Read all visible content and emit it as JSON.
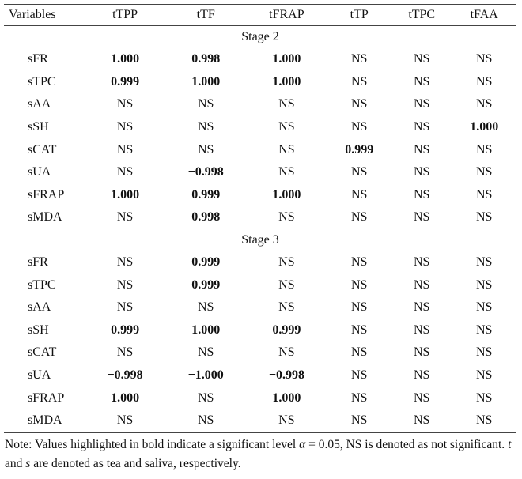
{
  "headers": [
    "Variables",
    "tTPP",
    "tTF",
    "tFRAP",
    "tTP",
    "tTPC",
    "tFAA"
  ],
  "stages": [
    {
      "label": "Stage 2",
      "rows": [
        {
          "var": "sFR",
          "cells": [
            {
              "v": "1.000",
              "b": true
            },
            {
              "v": "0.998",
              "b": true
            },
            {
              "v": "1.000",
              "b": true
            },
            {
              "v": "NS"
            },
            {
              "v": "NS"
            },
            {
              "v": "NS"
            }
          ]
        },
        {
          "var": "sTPC",
          "cells": [
            {
              "v": "0.999",
              "b": true
            },
            {
              "v": "1.000",
              "b": true
            },
            {
              "v": "1.000",
              "b": true
            },
            {
              "v": "NS"
            },
            {
              "v": "NS"
            },
            {
              "v": "NS"
            }
          ]
        },
        {
          "var": "sAA",
          "cells": [
            {
              "v": "NS"
            },
            {
              "v": "NS"
            },
            {
              "v": "NS"
            },
            {
              "v": "NS"
            },
            {
              "v": "NS"
            },
            {
              "v": "NS"
            }
          ]
        },
        {
          "var": "sSH",
          "cells": [
            {
              "v": "NS"
            },
            {
              "v": "NS"
            },
            {
              "v": "NS"
            },
            {
              "v": "NS"
            },
            {
              "v": "NS"
            },
            {
              "v": "1.000",
              "b": true
            }
          ]
        },
        {
          "var": "sCAT",
          "cells": [
            {
              "v": "NS"
            },
            {
              "v": "NS"
            },
            {
              "v": "NS"
            },
            {
              "v": "0.999",
              "b": true
            },
            {
              "v": "NS"
            },
            {
              "v": "NS"
            }
          ]
        },
        {
          "var": "sUA",
          "cells": [
            {
              "v": "NS"
            },
            {
              "v": "−0.998",
              "b": true
            },
            {
              "v": "NS"
            },
            {
              "v": "NS"
            },
            {
              "v": "NS"
            },
            {
              "v": "NS"
            }
          ]
        },
        {
          "var": "sFRAP",
          "cells": [
            {
              "v": "1.000",
              "b": true
            },
            {
              "v": "0.999",
              "b": true
            },
            {
              "v": "1.000",
              "b": true
            },
            {
              "v": "NS"
            },
            {
              "v": "NS"
            },
            {
              "v": "NS"
            }
          ]
        },
        {
          "var": "sMDA",
          "cells": [
            {
              "v": "NS"
            },
            {
              "v": "0.998",
              "b": true
            },
            {
              "v": "NS"
            },
            {
              "v": "NS"
            },
            {
              "v": "NS"
            },
            {
              "v": "NS"
            }
          ]
        }
      ]
    },
    {
      "label": "Stage 3",
      "rows": [
        {
          "var": "sFR",
          "cells": [
            {
              "v": "NS"
            },
            {
              "v": "0.999",
              "b": true
            },
            {
              "v": "NS"
            },
            {
              "v": "NS"
            },
            {
              "v": "NS"
            },
            {
              "v": "NS"
            }
          ]
        },
        {
          "var": "sTPC",
          "cells": [
            {
              "v": "NS"
            },
            {
              "v": "0.999",
              "b": true
            },
            {
              "v": "NS"
            },
            {
              "v": "NS"
            },
            {
              "v": "NS"
            },
            {
              "v": "NS"
            }
          ]
        },
        {
          "var": "sAA",
          "cells": [
            {
              "v": "NS"
            },
            {
              "v": "NS"
            },
            {
              "v": "NS"
            },
            {
              "v": "NS"
            },
            {
              "v": "NS"
            },
            {
              "v": "NS"
            }
          ]
        },
        {
          "var": "sSH",
          "cells": [
            {
              "v": "0.999",
              "b": true
            },
            {
              "v": "1.000",
              "b": true
            },
            {
              "v": "0.999",
              "b": true
            },
            {
              "v": "NS"
            },
            {
              "v": "NS"
            },
            {
              "v": "NS"
            }
          ]
        },
        {
          "var": "sCAT",
          "cells": [
            {
              "v": "NS"
            },
            {
              "v": "NS"
            },
            {
              "v": "NS"
            },
            {
              "v": "NS"
            },
            {
              "v": "NS"
            },
            {
              "v": "NS"
            }
          ]
        },
        {
          "var": "sUA",
          "cells": [
            {
              "v": "−0.998",
              "b": true
            },
            {
              "v": "−1.000",
              "b": true
            },
            {
              "v": "−0.998",
              "b": true
            },
            {
              "v": "NS"
            },
            {
              "v": "NS"
            },
            {
              "v": "NS"
            }
          ]
        },
        {
          "var": "sFRAP",
          "cells": [
            {
              "v": "1.000",
              "b": true
            },
            {
              "v": "NS"
            },
            {
              "v": "1.000",
              "b": true
            },
            {
              "v": "NS"
            },
            {
              "v": "NS"
            },
            {
              "v": "NS"
            }
          ]
        },
        {
          "var": "sMDA",
          "cells": [
            {
              "v": "NS"
            },
            {
              "v": "NS"
            },
            {
              "v": "NS"
            },
            {
              "v": "NS"
            },
            {
              "v": "NS"
            },
            {
              "v": "NS"
            }
          ]
        }
      ]
    }
  ],
  "note": {
    "p1": "Note: Values highlighted in bold indicate a significant level ",
    "alpha": "α",
    "p2": " = 0.05, NS is denoted as not significant. ",
    "t": "t",
    "p3": " and ",
    "s": "s",
    "p4": " are denoted as tea and saliva, respectively."
  }
}
